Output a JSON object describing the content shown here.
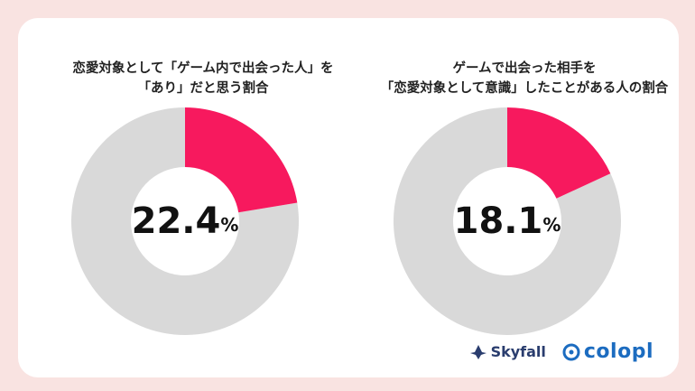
{
  "chart_data": [
    {
      "type": "pie",
      "title_lines": [
        "恋愛対象として「ゲーム内で出会った人」を",
        "「あり」だと思う割合"
      ],
      "value": 22.4,
      "unit": "%",
      "value_label": "22.4",
      "colors": {
        "highlight": "#f7195e",
        "rest": "#d9d9d9"
      }
    },
    {
      "type": "pie",
      "title_lines": [
        "ゲームで出会った相手を",
        "「恋愛対象として意識」したことがある人の割合"
      ],
      "value": 18.1,
      "unit": "%",
      "value_label": "18.1",
      "colors": {
        "highlight": "#f7195e",
        "rest": "#d9d9d9"
      }
    }
  ],
  "logos": {
    "skyfall": "Skyfall",
    "colopl": "colopl"
  }
}
